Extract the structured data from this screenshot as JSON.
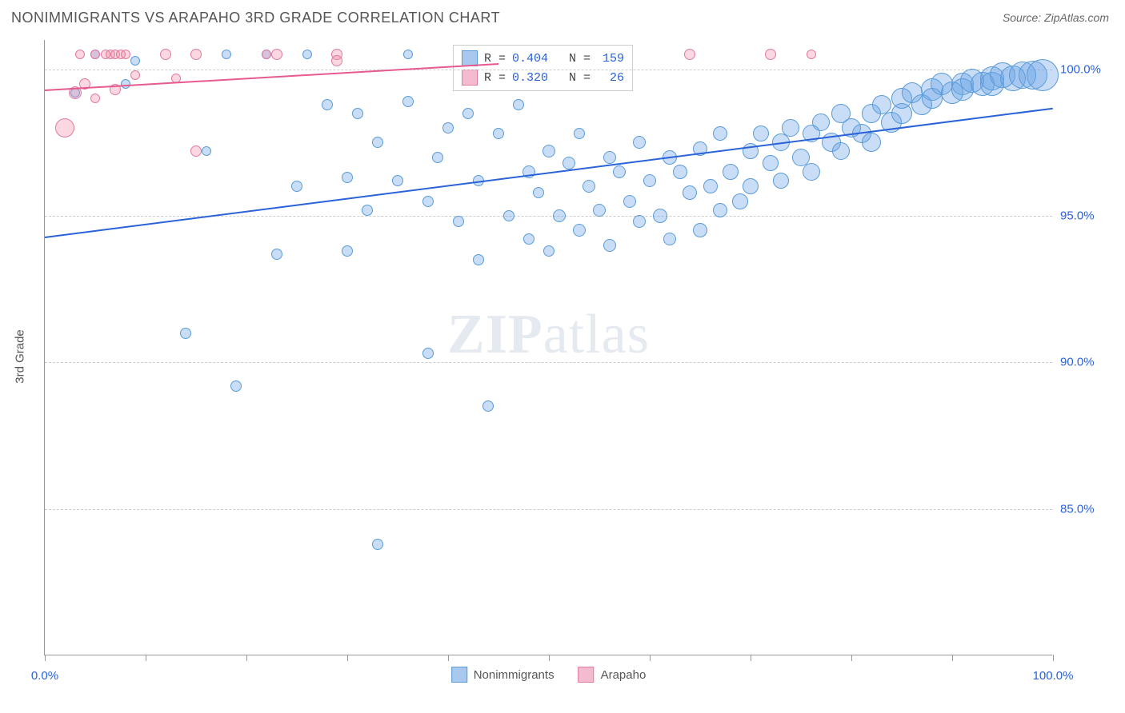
{
  "title": "NONIMMIGRANTS VS ARAPAHO 3RD GRADE CORRELATION CHART",
  "source_label": "Source: ZipAtlas.com",
  "y_axis_label": "3rd Grade",
  "watermark": "ZIPatlas",
  "chart": {
    "type": "scatter",
    "xlim": [
      0,
      100
    ],
    "ylim": [
      80,
      101
    ],
    "x_ticks": [
      0,
      10,
      20,
      30,
      40,
      50,
      60,
      70,
      80,
      90,
      100
    ],
    "x_tick_labels": {
      "0": "0.0%",
      "100": "100.0%"
    },
    "y_gridlines": [
      85,
      90,
      95,
      100
    ],
    "y_tick_labels": {
      "85": "85.0%",
      "90": "90.0%",
      "95": "95.0%",
      "100": "100.0%"
    },
    "background_color": "#ffffff",
    "grid_color": "#cccccc",
    "axis_color": "#999999",
    "label_color": "#2962d9"
  },
  "series": [
    {
      "name": "Nonimmigrants",
      "color_fill": "rgba(100,160,230,0.35)",
      "color_stroke": "#5a9bd8",
      "swatch_fill": "#a8c8ee",
      "swatch_border": "#5a9bd8",
      "R": "0.404",
      "N": "159",
      "trend": {
        "x1": 0,
        "y1": 94.3,
        "x2": 100,
        "y2": 98.7,
        "color": "#2962d9",
        "width": 2
      },
      "points": [
        {
          "x": 3,
          "y": 99.2,
          "r": 6
        },
        {
          "x": 5,
          "y": 100.5,
          "r": 6
        },
        {
          "x": 8,
          "y": 99.5,
          "r": 6
        },
        {
          "x": 9,
          "y": 100.3,
          "r": 6
        },
        {
          "x": 14,
          "y": 91.0,
          "r": 7
        },
        {
          "x": 16,
          "y": 97.2,
          "r": 6
        },
        {
          "x": 18,
          "y": 100.5,
          "r": 6
        },
        {
          "x": 19,
          "y": 89.2,
          "r": 7
        },
        {
          "x": 22,
          "y": 100.5,
          "r": 6
        },
        {
          "x": 23,
          "y": 93.7,
          "r": 7
        },
        {
          "x": 25,
          "y": 96.0,
          "r": 7
        },
        {
          "x": 26,
          "y": 100.5,
          "r": 6
        },
        {
          "x": 28,
          "y": 98.8,
          "r": 7
        },
        {
          "x": 30,
          "y": 96.3,
          "r": 7
        },
        {
          "x": 30,
          "y": 93.8,
          "r": 7
        },
        {
          "x": 31,
          "y": 98.5,
          "r": 7
        },
        {
          "x": 32,
          "y": 95.2,
          "r": 7
        },
        {
          "x": 33,
          "y": 97.5,
          "r": 7
        },
        {
          "x": 33,
          "y": 83.8,
          "r": 7
        },
        {
          "x": 35,
          "y": 96.2,
          "r": 7
        },
        {
          "x": 36,
          "y": 98.9,
          "r": 7
        },
        {
          "x": 36,
          "y": 100.5,
          "r": 6
        },
        {
          "x": 38,
          "y": 95.5,
          "r": 7
        },
        {
          "x": 38,
          "y": 90.3,
          "r": 7
        },
        {
          "x": 39,
          "y": 97.0,
          "r": 7
        },
        {
          "x": 40,
          "y": 98.0,
          "r": 7
        },
        {
          "x": 41,
          "y": 94.8,
          "r": 7
        },
        {
          "x": 42,
          "y": 98.5,
          "r": 7
        },
        {
          "x": 43,
          "y": 96.2,
          "r": 7
        },
        {
          "x": 43,
          "y": 93.5,
          "r": 7
        },
        {
          "x": 44,
          "y": 88.5,
          "r": 7
        },
        {
          "x": 45,
          "y": 97.8,
          "r": 7
        },
        {
          "x": 46,
          "y": 95.0,
          "r": 7
        },
        {
          "x": 47,
          "y": 98.8,
          "r": 7
        },
        {
          "x": 48,
          "y": 96.5,
          "r": 8
        },
        {
          "x": 48,
          "y": 94.2,
          "r": 7
        },
        {
          "x": 49,
          "y": 95.8,
          "r": 7
        },
        {
          "x": 50,
          "y": 97.2,
          "r": 8
        },
        {
          "x": 50,
          "y": 93.8,
          "r": 7
        },
        {
          "x": 51,
          "y": 95.0,
          "r": 8
        },
        {
          "x": 52,
          "y": 96.8,
          "r": 8
        },
        {
          "x": 53,
          "y": 94.5,
          "r": 8
        },
        {
          "x": 53,
          "y": 97.8,
          "r": 7
        },
        {
          "x": 54,
          "y": 96.0,
          "r": 8
        },
        {
          "x": 55,
          "y": 95.2,
          "r": 8
        },
        {
          "x": 56,
          "y": 97.0,
          "r": 8
        },
        {
          "x": 56,
          "y": 94.0,
          "r": 8
        },
        {
          "x": 57,
          "y": 96.5,
          "r": 8
        },
        {
          "x": 58,
          "y": 95.5,
          "r": 8
        },
        {
          "x": 59,
          "y": 97.5,
          "r": 8
        },
        {
          "x": 59,
          "y": 94.8,
          "r": 8
        },
        {
          "x": 60,
          "y": 96.2,
          "r": 8
        },
        {
          "x": 61,
          "y": 95.0,
          "r": 9
        },
        {
          "x": 62,
          "y": 97.0,
          "r": 9
        },
        {
          "x": 62,
          "y": 94.2,
          "r": 8
        },
        {
          "x": 63,
          "y": 96.5,
          "r": 9
        },
        {
          "x": 64,
          "y": 95.8,
          "r": 9
        },
        {
          "x": 65,
          "y": 97.3,
          "r": 9
        },
        {
          "x": 65,
          "y": 94.5,
          "r": 9
        },
        {
          "x": 66,
          "y": 96.0,
          "r": 9
        },
        {
          "x": 67,
          "y": 95.2,
          "r": 9
        },
        {
          "x": 67,
          "y": 97.8,
          "r": 9
        },
        {
          "x": 68,
          "y": 96.5,
          "r": 10
        },
        {
          "x": 69,
          "y": 95.5,
          "r": 10
        },
        {
          "x": 70,
          "y": 97.2,
          "r": 10
        },
        {
          "x": 70,
          "y": 96.0,
          "r": 10
        },
        {
          "x": 71,
          "y": 97.8,
          "r": 10
        },
        {
          "x": 72,
          "y": 96.8,
          "r": 10
        },
        {
          "x": 73,
          "y": 97.5,
          "r": 11
        },
        {
          "x": 73,
          "y": 96.2,
          "r": 10
        },
        {
          "x": 74,
          "y": 98.0,
          "r": 11
        },
        {
          "x": 75,
          "y": 97.0,
          "r": 11
        },
        {
          "x": 76,
          "y": 97.8,
          "r": 11
        },
        {
          "x": 76,
          "y": 96.5,
          "r": 11
        },
        {
          "x": 77,
          "y": 98.2,
          "r": 11
        },
        {
          "x": 78,
          "y": 97.5,
          "r": 12
        },
        {
          "x": 79,
          "y": 98.5,
          "r": 12
        },
        {
          "x": 79,
          "y": 97.2,
          "r": 11
        },
        {
          "x": 80,
          "y": 98.0,
          "r": 12
        },
        {
          "x": 81,
          "y": 97.8,
          "r": 12
        },
        {
          "x": 82,
          "y": 98.5,
          "r": 12
        },
        {
          "x": 82,
          "y": 97.5,
          "r": 12
        },
        {
          "x": 83,
          "y": 98.8,
          "r": 12
        },
        {
          "x": 84,
          "y": 98.2,
          "r": 13
        },
        {
          "x": 85,
          "y": 99.0,
          "r": 13
        },
        {
          "x": 85,
          "y": 98.5,
          "r": 13
        },
        {
          "x": 86,
          "y": 99.2,
          "r": 13
        },
        {
          "x": 87,
          "y": 98.8,
          "r": 13
        },
        {
          "x": 88,
          "y": 99.3,
          "r": 14
        },
        {
          "x": 88,
          "y": 99.0,
          "r": 13
        },
        {
          "x": 89,
          "y": 99.5,
          "r": 14
        },
        {
          "x": 90,
          "y": 99.2,
          "r": 14
        },
        {
          "x": 91,
          "y": 99.5,
          "r": 14
        },
        {
          "x": 91,
          "y": 99.3,
          "r": 14
        },
        {
          "x": 92,
          "y": 99.6,
          "r": 15
        },
        {
          "x": 93,
          "y": 99.5,
          "r": 15
        },
        {
          "x": 94,
          "y": 99.7,
          "r": 15
        },
        {
          "x": 94,
          "y": 99.5,
          "r": 15
        },
        {
          "x": 95,
          "y": 99.8,
          "r": 16
        },
        {
          "x": 96,
          "y": 99.7,
          "r": 16
        },
        {
          "x": 97,
          "y": 99.8,
          "r": 17
        },
        {
          "x": 98,
          "y": 99.8,
          "r": 18
        },
        {
          "x": 99,
          "y": 99.8,
          "r": 20
        }
      ]
    },
    {
      "name": "Arapaho",
      "color_fill": "rgba(240,140,170,0.35)",
      "color_stroke": "#e07ba0",
      "swatch_fill": "#f4bbd0",
      "swatch_border": "#e07ba0",
      "R": "0.320",
      "N": "26",
      "trend": {
        "x1": 0,
        "y1": 99.3,
        "x2": 45,
        "y2": 100.2,
        "color": "#e65a8f",
        "width": 2
      },
      "points": [
        {
          "x": 2,
          "y": 98.0,
          "r": 12
        },
        {
          "x": 3,
          "y": 99.2,
          "r": 8
        },
        {
          "x": 3.5,
          "y": 100.5,
          "r": 6
        },
        {
          "x": 4,
          "y": 99.5,
          "r": 7
        },
        {
          "x": 5,
          "y": 100.5,
          "r": 6
        },
        {
          "x": 5,
          "y": 99.0,
          "r": 6
        },
        {
          "x": 6,
          "y": 100.5,
          "r": 6
        },
        {
          "x": 6.5,
          "y": 100.5,
          "r": 6
        },
        {
          "x": 7,
          "y": 99.3,
          "r": 7
        },
        {
          "x": 7,
          "y": 100.5,
          "r": 6
        },
        {
          "x": 7.5,
          "y": 100.5,
          "r": 6
        },
        {
          "x": 8,
          "y": 100.5,
          "r": 6
        },
        {
          "x": 9,
          "y": 99.8,
          "r": 6
        },
        {
          "x": 12,
          "y": 100.5,
          "r": 7
        },
        {
          "x": 13,
          "y": 99.7,
          "r": 6
        },
        {
          "x": 15,
          "y": 100.5,
          "r": 7
        },
        {
          "x": 15,
          "y": 97.2,
          "r": 7
        },
        {
          "x": 22,
          "y": 100.5,
          "r": 6
        },
        {
          "x": 23,
          "y": 100.5,
          "r": 7
        },
        {
          "x": 29,
          "y": 100.5,
          "r": 7
        },
        {
          "x": 29,
          "y": 100.3,
          "r": 7
        },
        {
          "x": 64,
          "y": 100.5,
          "r": 7
        },
        {
          "x": 72,
          "y": 100.5,
          "r": 7
        },
        {
          "x": 76,
          "y": 100.5,
          "r": 6
        }
      ]
    }
  ],
  "legend": {
    "items": [
      {
        "label": "Nonimmigrants",
        "fill": "#a8c8ee",
        "border": "#5a9bd8"
      },
      {
        "label": "Arapaho",
        "fill": "#f4bbd0",
        "border": "#e07ba0"
      }
    ]
  }
}
